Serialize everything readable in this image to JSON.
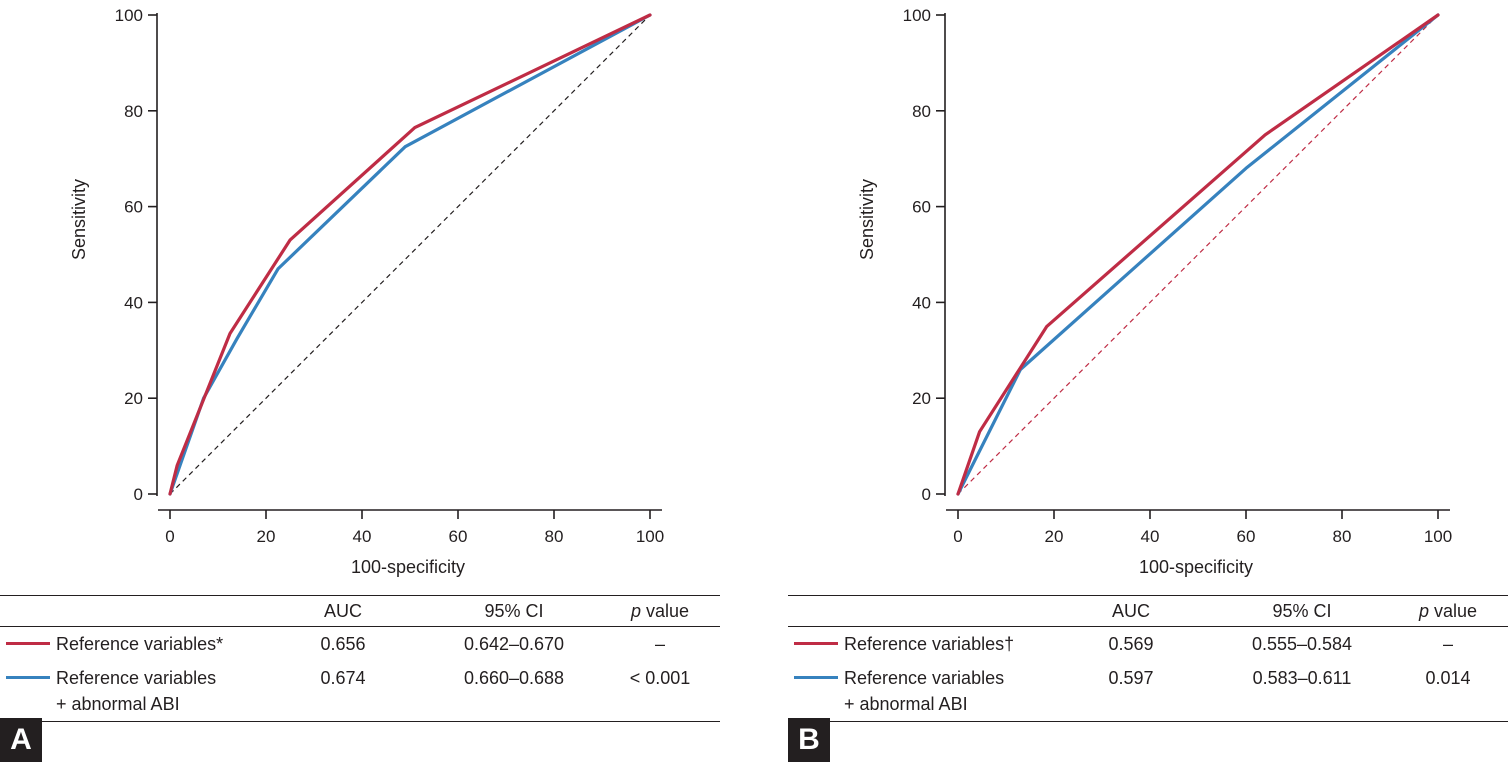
{
  "colors": {
    "reference": "#bf2c45",
    "combined": "#3682be",
    "axis": "#231f20"
  },
  "chart_data": [
    {
      "panel": "A",
      "type": "line",
      "xlabel": "100-specificity",
      "ylabel": "Sensitivity",
      "xlim": [
        0,
        100
      ],
      "ylim": [
        0,
        100
      ],
      "xticks": [
        "0",
        "20",
        "40",
        "60",
        "80",
        "100"
      ],
      "yticks": [
        "0",
        "20",
        "40",
        "60",
        "80",
        "100"
      ],
      "diagonal_color": "#231f20",
      "series": [
        {
          "name": "Reference variables*",
          "color": "#bf2c45",
          "x": [
            0,
            1.5,
            12.5,
            25,
            51,
            100
          ],
          "y": [
            0,
            6,
            33.5,
            53,
            76.5,
            100
          ]
        },
        {
          "name": "Reference variables + abnormal ABI",
          "color": "#3682be",
          "x": [
            0,
            7,
            14,
            22.5,
            49,
            100
          ],
          "y": [
            0,
            20,
            32.5,
            47,
            72.5,
            100
          ]
        }
      ]
    },
    {
      "panel": "B",
      "type": "line",
      "xlabel": "100-specificity",
      "ylabel": "Sensitivity",
      "xlim": [
        0,
        100
      ],
      "ylim": [
        0,
        100
      ],
      "xticks": [
        "0",
        "20",
        "40",
        "60",
        "80",
        "100"
      ],
      "yticks": [
        "0",
        "20",
        "40",
        "60",
        "80",
        "100"
      ],
      "diagonal_color": "#bf2c45",
      "series": [
        {
          "name": "Reference variables†",
          "color": "#bf2c45",
          "x": [
            0,
            4.5,
            18.5,
            64,
            100
          ],
          "y": [
            0,
            13,
            35,
            75,
            100
          ]
        },
        {
          "name": "Reference variables + abnormal ABI",
          "color": "#3682be",
          "x": [
            0,
            13,
            60,
            100
          ],
          "y": [
            0,
            26,
            68,
            100
          ]
        }
      ]
    }
  ],
  "table_a": {
    "headers": {
      "auc": "AUC",
      "ci": "95% CI",
      "p_italic": "p",
      "p_rest": " value"
    },
    "row1": {
      "label": "Reference variables*",
      "auc": "0.656",
      "ci": "0.642–0.670",
      "p": "–"
    },
    "row2": {
      "label_line1": "Reference variables",
      "label_line2": "+ abnormal ABI",
      "auc": "0.674",
      "ci": "0.660–0.688",
      "p": "< 0.001"
    }
  },
  "table_b": {
    "headers": {
      "auc": "AUC",
      "ci": "95% CI",
      "p_italic": "p",
      "p_rest": " value"
    },
    "row1": {
      "label": "Reference variables†",
      "auc": "0.569",
      "ci": "0.555–0.584",
      "p": "–"
    },
    "row2": {
      "label_line1": "Reference variables",
      "label_line2": "+ abnormal ABI",
      "auc": "0.597",
      "ci": "0.583–0.611",
      "p": "0.014"
    }
  },
  "panel_labels": {
    "a": "A",
    "b": "B"
  }
}
